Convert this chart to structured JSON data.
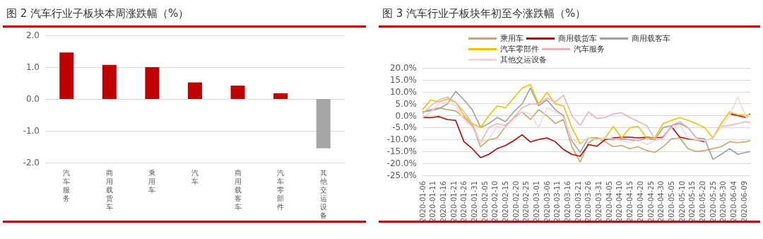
{
  "chart_data": [
    {
      "type": "bar",
      "title": "图 2 汽车行业子板块本周涨跌幅（%）",
      "categories": [
        "汽车服务",
        "商用载货车",
        "乘用车",
        "汽车",
        "商用载客车",
        "汽车零部件",
        "其他交运设备"
      ],
      "values": [
        1.46,
        1.07,
        1.0,
        0.52,
        0.42,
        0.18,
        -1.55
      ],
      "colors": [
        "#c00000",
        "#c00000",
        "#c00000",
        "#c00000",
        "#c00000",
        "#c00000",
        "#a6a6a6"
      ],
      "ylim": [
        -2,
        2
      ],
      "yticks": [
        {
          "value": -2,
          "label": "-2.0"
        },
        {
          "value": -1,
          "label": "-1.0"
        },
        {
          "value": 0,
          "label": "0.0"
        },
        {
          "value": 1,
          "label": "1.0"
        },
        {
          "value": 2,
          "label": "2.0"
        }
      ],
      "grid": "y",
      "legend": false
    },
    {
      "type": "line",
      "title": "图 3 汽车行业子板块年初至今涨跌幅（%）",
      "x": [
        "2020-01-06",
        "2020-01-10",
        "2020-01-14",
        "2020-01-18",
        "2020-01-22",
        "2020-01-26",
        "2020-01-30",
        "2020-02-03",
        "2020-02-07",
        "2020-02-11",
        "2020-02-15",
        "2020-02-19",
        "2020-02-23",
        "2020-02-27",
        "2020-03-02",
        "2020-03-06",
        "2020-03-10",
        "2020-03-14",
        "2020-03-18",
        "2020-03-22",
        "2020-03-26",
        "2020-03-30",
        "2020-04-03",
        "2020-04-07",
        "2020-04-11",
        "2020-04-15",
        "2020-04-19",
        "2020-04-23",
        "2020-04-27",
        "2020-05-01",
        "2020-05-05",
        "2020-05-09",
        "2020-05-13",
        "2020-05-17",
        "2020-05-21",
        "2020-05-25",
        "2020-05-29",
        "2020-06-02",
        "2020-06-06",
        "2020-06-10",
        "2020-06-12"
      ],
      "series": [
        {
          "name": "乘用车",
          "color": "#c9a66b",
          "values": [
            1.6,
            2.5,
            3.3,
            2.5,
            2.0,
            -0.8,
            -4.1,
            -13.0,
            -10.1,
            -9.3,
            -4.5,
            -0.8,
            1.6,
            -1.6,
            2.5,
            0.0,
            -3.3,
            -1.6,
            -13.0,
            -19.5,
            -11.3,
            -9.3,
            -10.9,
            -13.0,
            -12.5,
            -13.8,
            -13.0,
            -14.6,
            -15.4,
            -13.0,
            -9.7,
            -9.3,
            -13.8,
            -15.0,
            -14.6,
            -13.8,
            -13.0,
            -10.9,
            -11.3,
            -10.9,
            -10.5
          ]
        },
        {
          "name": "商用载货车",
          "color": "#c00000",
          "values": [
            -0.7,
            -0.8,
            -0.4,
            -1.6,
            -2.0,
            -10.9,
            -13.8,
            -17.6,
            -16.2,
            -13.8,
            -12.5,
            -10.5,
            -8.0,
            -11.0,
            -10.0,
            -9.3,
            -10.9,
            -14.2,
            -16.2,
            -17.0,
            -12.1,
            -12.8,
            -10.1,
            -9.3,
            -9.0,
            -9.0,
            -9.3,
            -9.0,
            -9.3,
            -9.0,
            -4.5,
            -9.0,
            -9.7,
            -10.1,
            -10.9,
            null,
            null,
            0.8,
            0.0,
            -0.8,
            0.8
          ]
        },
        {
          "name": "商用载客车",
          "color": "#a0a0a0",
          "values": [
            1.6,
            2.0,
            2.9,
            4.9,
            10.2,
            6.6,
            2.5,
            -5.0,
            -3.3,
            -0.8,
            -2.5,
            1.6,
            4.9,
            11.5,
            4.1,
            6.6,
            2.5,
            0.0,
            -10.5,
            -15.4,
            -9.3,
            -9.3,
            -9.7,
            -10.1,
            -9.7,
            -10.1,
            -10.5,
            -9.3,
            -10.1,
            -5.0,
            -4.1,
            -3.3,
            -5.0,
            -9.3,
            -9.7,
            -18.3,
            -16.2,
            -13.8,
            -16.2,
            -15.4,
            -15.0
          ]
        },
        {
          "name": "汽车零部件",
          "color": "#f5c000",
          "values": [
            2.5,
            6.6,
            5.7,
            7.0,
            5.7,
            0.0,
            -3.3,
            -5.0,
            0.0,
            4.1,
            3.3,
            7.4,
            11.5,
            13.1,
            4.9,
            9.8,
            4.9,
            4.1,
            -5.0,
            -11.7,
            -9.3,
            -9.7,
            -9.3,
            -4.5,
            -9.3,
            -5.0,
            -4.5,
            -9.3,
            -9.3,
            -3.3,
            -2.0,
            -0.8,
            -2.0,
            -3.3,
            -5.0,
            -9.3,
            -3.3,
            1.6,
            0.4,
            0.2,
            0.0
          ]
        },
        {
          "name": "汽车服务",
          "color": "#e8b4b8",
          "values": [
            0.8,
            4.1,
            6.6,
            7.8,
            5.7,
            1.6,
            -3.3,
            -11.3,
            -5.0,
            -3.3,
            -4.1,
            -0.8,
            3.3,
            4.9,
            4.9,
            7.4,
            5.7,
            8.6,
            0.0,
            -4.1,
            1.6,
            -1.2,
            -0.8,
            0.8,
            1.2,
            -0.8,
            -2.5,
            -4.1,
            -9.7,
            -9.3,
            -4.1,
            -2.5,
            -5.0,
            -9.3,
            -10.5,
            -9.3,
            -4.5,
            -4.1,
            -3.3,
            -2.5,
            -2.9
          ]
        },
        {
          "name": "其他交运设备",
          "color": "#f4d6d8",
          "values": [
            -0.8,
            1.6,
            4.9,
            5.7,
            4.1,
            -1.6,
            -5.0,
            -11.3,
            -9.7,
            -4.5,
            -5.0,
            -1.6,
            1.6,
            0.8,
            -5.0,
            3.3,
            1.6,
            -0.8,
            -9.7,
            -12.1,
            -9.3,
            -10.1,
            -9.3,
            -9.7,
            -10.5,
            -11.3,
            -10.1,
            -12.1,
            -10.5,
            -9.7,
            -5.0,
            -4.1,
            -9.3,
            -10.1,
            -10.5,
            -9.7,
            -4.5,
            0.0,
            7.8,
            -0.8,
            0.4
          ]
        }
      ],
      "xlim": [
        "2020-01-06",
        "2020-06-12"
      ],
      "xticks": [
        "2020-01-06",
        "2020-01-11",
        "2020-01-16",
        "2020-01-21",
        "2020-01-26",
        "2020-01-31",
        "2020-02-05",
        "2020-02-10",
        "2020-02-15",
        "2020-02-20",
        "2020-02-25",
        "2020-03-01",
        "2020-03-06",
        "2020-03-11",
        "2020-03-16",
        "2020-03-21",
        "2020-03-26",
        "2020-03-31",
        "2020-04-05",
        "2020-04-10",
        "2020-04-15",
        "2020-04-20",
        "2020-04-25",
        "2020-04-30",
        "2020-05-05",
        "2020-05-10",
        "2020-05-15",
        "2020-05-20",
        "2020-05-25",
        "2020-05-30",
        "2020-06-04",
        "2020-06-09"
      ],
      "ylim": [
        -25,
        20
      ],
      "yticks": [
        {
          "value": -25,
          "label": "-25.0%"
        },
        {
          "value": -20,
          "label": "-20.0%"
        },
        {
          "value": -15,
          "label": "-15.0%"
        },
        {
          "value": -10,
          "label": "-10.0%"
        },
        {
          "value": -5,
          "label": "-5.0%"
        },
        {
          "value": 0,
          "label": "0.0%"
        },
        {
          "value": 5,
          "label": "5.0%"
        },
        {
          "value": 10,
          "label": "10.0%"
        },
        {
          "value": 15,
          "label": "15.0%"
        },
        {
          "value": 20,
          "label": "20.0%"
        }
      ],
      "grid": "y",
      "legend": "top",
      "marker": "none",
      "line_style": "solid"
    }
  ]
}
